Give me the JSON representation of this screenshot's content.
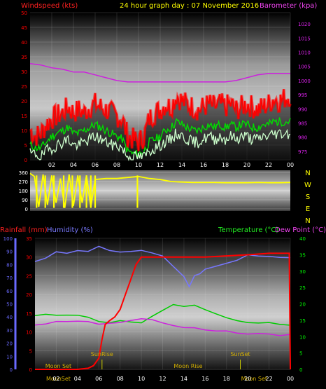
{
  "header": {
    "title": "24 hour graph day : 07 November 2016",
    "left_label": "Windspeed (kts)",
    "right_label": "Barometer (kpa)"
  },
  "colors": {
    "red": "#ff0000",
    "magenta": "#dd22ee",
    "yellow": "#ffff00",
    "green": "#00ff00",
    "white": "#ffffff",
    "gust": "#ff0000",
    "wind_avg": "#00dd00",
    "wind_low": "#ccffcc",
    "baro": "#cc22dd",
    "dir": "#ffff00",
    "rain": "#ff0000",
    "humidity": "#7777ff",
    "temp": "#00cc00",
    "dew": "#cc22dd",
    "hum_axis": "#6a6aff",
    "mark_text": "#d4b000"
  },
  "x_ticks": [
    "02",
    "04",
    "06",
    "08",
    "10",
    "12",
    "14",
    "16",
    "18",
    "20",
    "22",
    "00"
  ],
  "chart_data": [
    {
      "type": "line",
      "id": "wind_baro",
      "title": "24 hour graph day : 07 November 2016",
      "ylabel_left": "Windspeed (kts)",
      "ylabel_right": "Barometer (kpa)",
      "x_range": [
        0,
        24
      ],
      "ylim_left": [
        0,
        50
      ],
      "ylim_right": [
        972,
        1024
      ],
      "left_ticks": [
        "0",
        "5",
        "10",
        "15",
        "20",
        "25",
        "30",
        "35",
        "40",
        "45",
        "50"
      ],
      "right_ticks": [
        "975",
        "980",
        "985",
        "990",
        "995",
        "1000",
        "1005",
        "1010",
        "1015",
        "1020"
      ],
      "series": [
        {
          "id": "gust",
          "axis": "left",
          "x": [
            0,
            0.5,
            1,
            1.5,
            2,
            2.5,
            3,
            3.5,
            4,
            4.5,
            5,
            5.5,
            6,
            6.5,
            7,
            7.5,
            8,
            8.5,
            9,
            9.5,
            10,
            10.5,
            11,
            11.5,
            12,
            12.5,
            13,
            13.5,
            14,
            14.5,
            15,
            15.5,
            16,
            16.5,
            17,
            17.5,
            18,
            18.5,
            19,
            19.5,
            20,
            20.5,
            21,
            21.5,
            22,
            22.5,
            23,
            23.5,
            24
          ],
          "values": [
            10,
            8,
            9,
            12,
            14,
            15,
            16,
            18,
            16,
            17,
            16,
            18,
            19,
            18,
            17,
            16,
            15,
            14,
            8,
            7,
            6,
            8,
            14,
            16,
            17,
            19,
            18,
            22,
            20,
            19,
            18,
            17,
            18,
            19,
            18,
            19,
            18,
            19,
            17,
            18,
            19,
            18,
            17,
            18,
            19,
            21,
            20,
            21,
            22
          ]
        },
        {
          "id": "avg",
          "axis": "left",
          "x": [
            0,
            0.5,
            1,
            1.5,
            2,
            2.5,
            3,
            3.5,
            4,
            4.5,
            5,
            5.5,
            6,
            6.5,
            7,
            7.5,
            8,
            8.5,
            9,
            9.5,
            10,
            10.5,
            11,
            11.5,
            12,
            12.5,
            13,
            13.5,
            14,
            14.5,
            15,
            15.5,
            16,
            16.5,
            17,
            17.5,
            18,
            18.5,
            19,
            19.5,
            20,
            20.5,
            21,
            21.5,
            22,
            22.5,
            23,
            23.5,
            24
          ],
          "values": [
            5,
            4,
            4,
            6,
            8,
            9,
            10,
            11,
            9,
            9,
            10,
            11,
            12,
            11,
            10,
            9,
            8,
            7,
            3,
            2,
            2,
            3,
            6,
            7,
            8,
            10,
            11,
            13,
            12,
            11,
            10,
            10,
            11,
            12,
            11,
            12,
            11,
            12,
            11,
            12,
            12,
            11,
            11,
            12,
            12,
            13,
            13,
            13,
            13
          ]
        },
        {
          "id": "low",
          "axis": "left",
          "x": [
            0,
            0.5,
            1,
            1.5,
            2,
            2.5,
            3,
            3.5,
            4,
            4.5,
            5,
            5.5,
            6,
            6.5,
            7,
            7.5,
            8,
            8.5,
            9,
            9.5,
            10,
            10.5,
            11,
            11.5,
            12,
            12.5,
            13,
            13.5,
            14,
            14.5,
            15,
            15.5,
            16,
            16.5,
            17,
            17.5,
            18,
            18.5,
            19,
            19.5,
            20,
            20.5,
            21,
            21.5,
            22,
            22.5,
            23,
            23.5,
            24
          ],
          "values": [
            2,
            2,
            1,
            3,
            4,
            5,
            6,
            7,
            5,
            5,
            6,
            7,
            8,
            7,
            6,
            5,
            5,
            4,
            1,
            1,
            1,
            1,
            3,
            4,
            5,
            6,
            7,
            9,
            8,
            7,
            6,
            6,
            7,
            8,
            7,
            8,
            7,
            8,
            7,
            8,
            8,
            7,
            7,
            8,
            8,
            9,
            9,
            9,
            9
          ]
        },
        {
          "id": "baro",
          "axis": "right",
          "x": [
            0,
            1,
            2,
            3,
            4,
            5,
            6,
            7,
            8,
            9,
            10,
            11,
            12,
            13,
            14,
            15,
            16,
            17,
            18,
            19,
            20,
            21,
            22,
            23,
            24
          ],
          "values": [
            1006,
            1005.5,
            1004.5,
            1004,
            1003,
            1003,
            1002,
            1001,
            1000,
            999.5,
            999.5,
            999.5,
            999.5,
            999.5,
            999.5,
            999.5,
            999.5,
            999.5,
            999.5,
            1000,
            1001,
            1002,
            1002.5,
            1002.5,
            1002.5
          ]
        }
      ]
    },
    {
      "type": "line",
      "id": "direction",
      "x_range": [
        0,
        24
      ],
      "ylim": [
        0,
        360
      ],
      "ticks": [
        "0",
        "90",
        "180",
        "270",
        "360"
      ],
      "cardinal_labels": [
        "N",
        "W",
        "S",
        "E",
        "N"
      ],
      "series": [
        {
          "id": "wind_dir",
          "x": [
            0,
            0.4,
            0.8,
            1.2,
            1.6,
            2,
            2.4,
            2.8,
            3.2,
            3.6,
            4,
            4.4,
            4.8,
            5.2,
            5.6,
            6,
            7,
            8,
            9,
            10,
            11,
            12,
            13,
            14,
            15,
            16,
            17,
            18,
            19,
            20,
            21,
            22,
            23,
            24
          ],
          "values": [
            350,
            320,
            20,
            340,
            40,
            330,
            60,
            300,
            10,
            340,
            30,
            330,
            60,
            330,
            20,
            290,
            300,
            300,
            310,
            320,
            300,
            290,
            270,
            265,
            260,
            260,
            260,
            258,
            258,
            258,
            260,
            258,
            258,
            260
          ]
        }
      ]
    },
    {
      "type": "line",
      "id": "rain_hum_temp",
      "x_range": [
        0,
        24
      ],
      "left_label_1": "Rainfall (mm)",
      "left_label_2": "Humidity (%)",
      "right_label_1": "Temperature (°C)",
      "right_label_2": "Dew Point (°C)",
      "humidity_ticks": [
        "0",
        "10",
        "20",
        "30",
        "40",
        "50",
        "60",
        "70",
        "80",
        "90",
        "100"
      ],
      "rain_ticks": [
        "0",
        "5",
        "10",
        "15",
        "20",
        "25",
        "30",
        "35"
      ],
      "temp_ticks": [
        "0",
        "5",
        "10",
        "15",
        "20",
        "25",
        "30",
        "35",
        "40"
      ],
      "ylim_humidity": [
        0,
        100
      ],
      "ylim_rain": [
        0,
        35
      ],
      "ylim_temp": [
        0,
        40
      ],
      "series": [
        {
          "id": "rainfall",
          "axis": "rain",
          "x": [
            0,
            1,
            2,
            3,
            4,
            5,
            5.5,
            6,
            6.3,
            6.6,
            7,
            7.5,
            8,
            8.5,
            9,
            9.5,
            10,
            12,
            14,
            16,
            18,
            20,
            22,
            23.9,
            24
          ],
          "values": [
            0,
            0,
            0,
            0,
            0,
            0.3,
            1,
            3,
            8,
            12,
            13,
            14,
            16,
            20,
            24,
            28,
            30,
            30,
            30,
            30,
            30.3,
            30.6,
            31,
            31,
            0
          ]
        },
        {
          "id": "humidity",
          "axis": "humidity",
          "x": [
            0,
            1,
            2,
            3,
            4,
            5,
            6,
            7,
            8,
            9,
            10,
            11,
            12,
            13,
            14,
            14.5,
            15,
            15.5,
            16,
            17,
            18,
            19,
            20,
            21,
            22,
            23,
            24
          ],
          "values": [
            83,
            86,
            88,
            89,
            90,
            91,
            92,
            91,
            90,
            90,
            89,
            88,
            87,
            78,
            70,
            65,
            70,
            72,
            75,
            80,
            82,
            84,
            86,
            86,
            85,
            86,
            86
          ]
        },
        {
          "id": "temperature",
          "axis": "temp",
          "x": [
            0,
            1,
            2,
            3,
            4,
            5,
            6,
            7,
            8,
            9,
            10,
            11,
            12,
            13,
            14,
            15,
            16,
            17,
            18,
            19,
            20,
            21,
            22,
            23,
            24
          ],
          "values": [
            16.5,
            16.5,
            16.5,
            16.3,
            16.5,
            16,
            15,
            14.5,
            14.5,
            14.5,
            14.5,
            16,
            18,
            19.5,
            19.5,
            19.5,
            18,
            17,
            16,
            15,
            14.5,
            14,
            14,
            13.5,
            13.5
          ]
        },
        {
          "id": "dewpoint",
          "axis": "temp",
          "x": [
            0,
            1,
            2,
            3,
            4,
            5,
            6,
            7,
            8,
            9,
            10,
            11,
            12,
            13,
            14,
            15,
            16,
            17,
            18,
            19,
            20,
            21,
            22,
            23,
            24
          ],
          "values": [
            13.5,
            14,
            14.5,
            14.5,
            14.8,
            14.5,
            14,
            14,
            14.5,
            15,
            15.5,
            15,
            14,
            13.5,
            12.5,
            12.5,
            12,
            11.5,
            11.5,
            11,
            11,
            11,
            10.5,
            10.5,
            10.5
          ]
        }
      ],
      "markers": [
        {
          "label": "Moon Set",
          "x": 2.2,
          "row": "top"
        },
        {
          "label": "SunRise",
          "x": 6.3,
          "row": "high"
        },
        {
          "label": "Moon Rise",
          "x": 14.4,
          "row": "top"
        },
        {
          "label": "SunSet",
          "x": 19.3,
          "row": "high"
        },
        {
          "label": "MoonSet",
          "x": 2.2,
          "row": "bottom"
        },
        {
          "label": "Moon Set",
          "x": 20.6,
          "row": "bottom"
        }
      ]
    }
  ]
}
